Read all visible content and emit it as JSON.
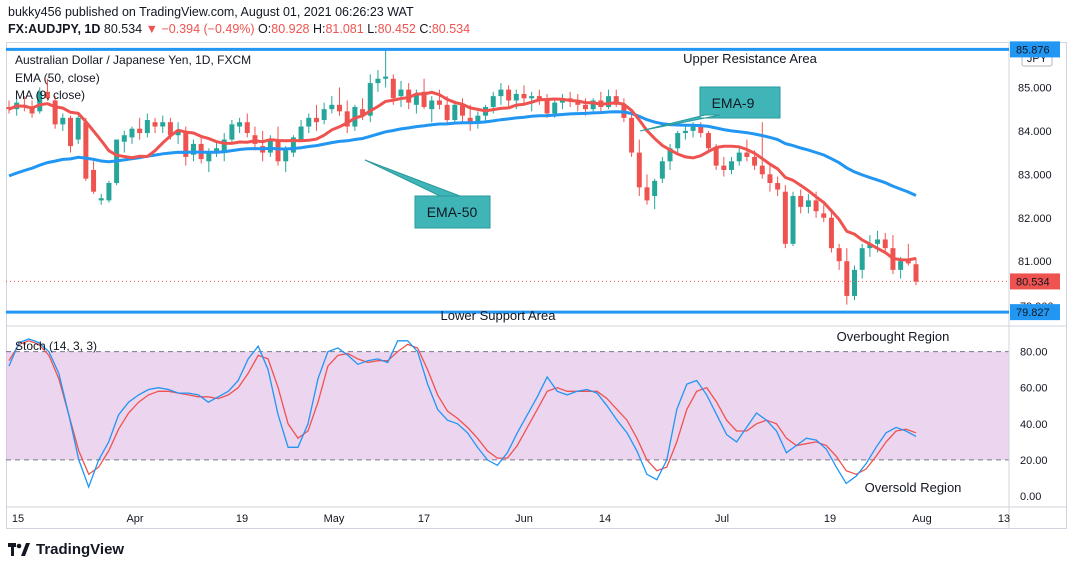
{
  "header": {
    "publisher_line": "bukky456 published on TradingView.com, August 01, 2021 06:26:23 WAT",
    "symbol": "FX:AUDJPY, 1D",
    "last": "80.534",
    "change": "▼ −0.394 (−0.49%)",
    "o_label": "O:",
    "o": "80.928",
    "h_label": "H:",
    "h": "81.081",
    "l_label": "L:",
    "l": "80.452",
    "c_label": "C:",
    "c": "80.534"
  },
  "footer": {
    "brand": "TradingView",
    "logo_icon": "tradingview-logo-icon"
  },
  "colors": {
    "up": "#26a69a",
    "down": "#ef5350",
    "ema50": "#2196f3",
    "ma9": "#ef5350",
    "stoch_k": "#2196f3",
    "stoch_d": "#ef5350",
    "band_fill": "#e1bee7",
    "callout": "#3fb5b8",
    "level": "#2196f3"
  },
  "chart_data": [
    {
      "type": "candlestick",
      "title": "Australian Dollar / Japanese Yen, 1D, FXCM",
      "currency": "JPY",
      "legend": [
        "EMA (50, close)",
        "MA (9, close)"
      ],
      "ylim": [
        79.6,
        86.0
      ],
      "y_ticks": [
        "85.000",
        "84.000",
        "83.000",
        "82.000",
        "81.000"
      ],
      "x_ticks": [
        "15",
        "Apr",
        "19",
        "May",
        "17",
        "Jun",
        "14",
        "Jul",
        "19",
        "Aug",
        "13"
      ],
      "levels": [
        {
          "name": "Upper Resistance Area",
          "value": 85.876,
          "label": "85.876"
        },
        {
          "name": "Lower Support Area",
          "value": 79.827,
          "label": "79.827"
        }
      ],
      "last_price": {
        "value": 80.534,
        "label": "80.534"
      },
      "hidden_label": "79.900",
      "callouts": [
        "EMA-9",
        "EMA-50"
      ],
      "candles": [
        [
          84.55,
          84.7,
          84.4,
          84.5
        ],
        [
          84.5,
          84.75,
          84.35,
          84.65
        ],
        [
          84.6,
          84.8,
          84.45,
          84.55
        ],
        [
          84.55,
          84.7,
          84.3,
          84.4
        ],
        [
          84.45,
          85.0,
          84.4,
          84.9
        ],
        [
          84.9,
          85.2,
          84.7,
          84.75
        ],
        [
          84.7,
          84.8,
          84.05,
          84.15
        ],
        [
          84.15,
          84.4,
          84.0,
          84.3
        ],
        [
          84.3,
          84.35,
          83.5,
          83.65
        ],
        [
          83.8,
          84.35,
          83.7,
          84.3
        ],
        [
          84.2,
          84.3,
          82.85,
          82.9
        ],
        [
          83.1,
          83.3,
          82.55,
          82.6
        ],
        [
          82.4,
          82.55,
          82.3,
          82.45
        ],
        [
          82.4,
          82.85,
          82.35,
          82.8
        ],
        [
          82.8,
          83.8,
          82.75,
          83.8
        ],
        [
          83.75,
          84.0,
          83.5,
          83.9
        ],
        [
          83.85,
          84.1,
          83.7,
          84.05
        ],
        [
          84.05,
          84.3,
          83.8,
          83.95
        ],
        [
          83.95,
          84.4,
          83.85,
          84.25
        ],
        [
          84.2,
          84.3,
          83.95,
          84.1
        ],
        [
          84.1,
          84.35,
          83.95,
          84.2
        ],
        [
          84.2,
          84.3,
          83.8,
          83.9
        ],
        [
          83.9,
          84.2,
          83.7,
          84.0
        ],
        [
          84.0,
          84.1,
          83.2,
          83.4
        ],
        [
          83.45,
          83.8,
          83.3,
          83.7
        ],
        [
          83.7,
          83.85,
          83.25,
          83.35
        ],
        [
          83.3,
          83.6,
          83.05,
          83.5
        ],
        [
          83.5,
          83.75,
          83.4,
          83.6
        ],
        [
          83.5,
          83.95,
          83.3,
          83.8
        ],
        [
          83.8,
          84.25,
          83.7,
          84.15
        ],
        [
          84.1,
          84.3,
          83.95,
          84.2
        ],
        [
          84.2,
          84.4,
          83.85,
          83.95
        ],
        [
          83.9,
          84.1,
          83.55,
          83.7
        ],
        [
          83.65,
          84.0,
          83.3,
          83.5
        ],
        [
          83.5,
          83.9,
          83.4,
          83.8
        ],
        [
          83.8,
          84.1,
          83.2,
          83.3
        ],
        [
          83.3,
          83.65,
          83.05,
          83.55
        ],
        [
          83.5,
          83.9,
          83.4,
          83.85
        ],
        [
          83.8,
          84.25,
          83.75,
          84.1
        ],
        [
          84.1,
          84.4,
          83.95,
          84.3
        ],
        [
          84.3,
          84.6,
          84.0,
          84.2
        ],
        [
          84.25,
          84.65,
          84.15,
          84.5
        ],
        [
          84.5,
          84.8,
          84.4,
          84.6
        ],
        [
          84.6,
          85.0,
          84.35,
          84.45
        ],
        [
          84.45,
          84.7,
          83.95,
          84.1
        ],
        [
          84.1,
          84.6,
          84.0,
          84.55
        ],
        [
          84.5,
          84.75,
          84.25,
          84.35
        ],
        [
          84.35,
          85.3,
          84.2,
          85.1
        ],
        [
          85.1,
          85.4,
          84.9,
          85.2
        ],
        [
          85.2,
          85.85,
          85.0,
          85.25
        ],
        [
          85.2,
          85.3,
          84.6,
          84.75
        ],
        [
          84.8,
          85.15,
          84.55,
          84.95
        ],
        [
          84.95,
          85.1,
          84.5,
          84.65
        ],
        [
          84.6,
          84.95,
          84.4,
          84.85
        ],
        [
          84.9,
          85.2,
          84.5,
          84.55
        ],
        [
          84.5,
          84.8,
          84.2,
          84.7
        ],
        [
          84.7,
          84.95,
          84.5,
          84.6
        ],
        [
          84.6,
          84.8,
          84.15,
          84.25
        ],
        [
          84.25,
          84.7,
          84.2,
          84.6
        ],
        [
          84.6,
          84.75,
          84.2,
          84.35
        ],
        [
          84.3,
          84.6,
          84.0,
          84.2
        ],
        [
          84.2,
          84.45,
          84.05,
          84.35
        ],
        [
          84.35,
          84.6,
          84.2,
          84.55
        ],
        [
          84.55,
          84.9,
          84.4,
          84.8
        ],
        [
          84.8,
          85.1,
          84.6,
          84.95
        ],
        [
          84.95,
          85.05,
          84.55,
          84.7
        ],
        [
          84.7,
          84.95,
          84.5,
          84.85
        ],
        [
          84.85,
          85.05,
          84.6,
          84.75
        ],
        [
          84.75,
          84.9,
          84.45,
          84.8
        ],
        [
          84.8,
          84.95,
          84.6,
          84.7
        ],
        [
          84.7,
          84.85,
          84.3,
          84.4
        ],
        [
          84.4,
          84.7,
          84.3,
          84.65
        ],
        [
          84.65,
          84.85,
          84.5,
          84.75
        ],
        [
          84.75,
          84.9,
          84.55,
          84.7
        ],
        [
          84.7,
          84.85,
          84.45,
          84.6
        ],
        [
          84.6,
          84.75,
          84.35,
          84.5
        ],
        [
          84.5,
          84.75,
          84.45,
          84.7
        ],
        [
          84.7,
          84.9,
          84.4,
          84.55
        ],
        [
          84.55,
          84.95,
          84.5,
          84.8
        ],
        [
          84.8,
          84.95,
          84.55,
          84.6
        ],
        [
          84.6,
          84.75,
          84.2,
          84.3
        ],
        [
          84.3,
          84.4,
          83.4,
          83.5
        ],
        [
          83.5,
          83.8,
          82.5,
          82.7
        ],
        [
          82.7,
          83.0,
          82.3,
          82.4
        ],
        [
          82.5,
          82.9,
          82.2,
          82.85
        ],
        [
          82.9,
          83.4,
          82.8,
          83.3
        ],
        [
          83.3,
          83.7,
          83.1,
          83.6
        ],
        [
          83.6,
          84.0,
          83.5,
          83.95
        ],
        [
          83.95,
          84.1,
          83.8,
          84.0
        ],
        [
          84.0,
          84.2,
          83.85,
          84.1
        ],
        [
          84.1,
          84.2,
          83.85,
          83.95
        ],
        [
          83.95,
          84.0,
          83.55,
          83.6
        ],
        [
          83.6,
          83.7,
          83.1,
          83.2
        ],
        [
          83.2,
          83.4,
          82.95,
          83.1
        ],
        [
          83.1,
          83.4,
          83.0,
          83.3
        ],
        [
          83.3,
          83.6,
          83.2,
          83.5
        ],
        [
          83.5,
          83.8,
          83.3,
          83.4
        ],
        [
          83.4,
          83.55,
          83.1,
          83.2
        ],
        [
          83.2,
          84.2,
          82.9,
          83.0
        ],
        [
          83.0,
          83.2,
          82.6,
          82.8
        ],
        [
          82.8,
          82.95,
          82.5,
          82.65
        ],
        [
          82.6,
          82.75,
          81.3,
          81.4
        ],
        [
          81.4,
          82.6,
          81.35,
          82.5
        ],
        [
          82.5,
          82.65,
          82.1,
          82.25
        ],
        [
          82.25,
          82.55,
          82.1,
          82.4
        ],
        [
          82.4,
          82.6,
          82.0,
          82.15
        ],
        [
          82.1,
          82.3,
          81.9,
          82.0
        ],
        [
          82.0,
          82.2,
          81.2,
          81.3
        ],
        [
          81.3,
          81.4,
          80.8,
          81.0
        ],
        [
          81.0,
          81.3,
          80.0,
          80.2
        ],
        [
          80.2,
          80.9,
          80.1,
          80.8
        ],
        [
          80.8,
          81.4,
          80.6,
          81.3
        ],
        [
          81.3,
          81.6,
          81.1,
          81.4
        ],
        [
          81.4,
          81.7,
          81.2,
          81.5
        ],
        [
          81.5,
          81.65,
          81.2,
          81.3
        ],
        [
          81.3,
          81.6,
          80.7,
          80.8
        ],
        [
          80.8,
          81.1,
          80.6,
          81.0
        ],
        [
          81.0,
          81.4,
          80.9,
          80.95
        ],
        [
          80.93,
          81.08,
          80.45,
          80.53
        ]
      ]
    },
    {
      "type": "line",
      "title": "Stoch (14, 3, 3)",
      "ylim": [
        -5,
        92
      ],
      "y_ticks": [
        "80.00",
        "60.00",
        "40.00",
        "20.00",
        "0.00"
      ],
      "bands": [
        20,
        80
      ],
      "annotations": [
        "Overbought Region",
        "Oversold Region"
      ],
      "series": [
        {
          "name": "%K",
          "values": [
            72,
            85,
            87,
            85,
            80,
            68,
            45,
            20,
            5,
            20,
            30,
            45,
            52,
            56,
            59,
            60,
            59,
            57,
            57,
            56,
            52,
            55,
            58,
            64,
            76,
            83,
            70,
            45,
            27,
            27,
            40,
            65,
            80,
            82,
            78,
            73,
            75,
            76,
            74,
            86,
            86,
            80,
            62,
            48,
            42,
            40,
            35,
            27,
            20,
            17,
            24,
            35,
            45,
            55,
            66,
            58,
            56,
            58,
            59,
            57,
            50,
            42,
            35,
            25,
            12,
            9,
            20,
            48,
            62,
            64,
            56,
            45,
            34,
            30,
            38,
            46,
            42,
            36,
            24,
            28,
            32,
            31,
            26,
            16,
            7,
            11,
            18,
            27,
            35,
            38,
            36,
            33
          ]
        },
        {
          "name": "%D",
          "values": [
            75,
            84,
            86,
            84,
            78,
            65,
            45,
            25,
            12,
            16,
            25,
            37,
            46,
            52,
            56,
            58,
            58,
            57,
            56,
            55,
            55,
            54,
            56,
            60,
            68,
            78,
            76,
            60,
            40,
            32,
            36,
            52,
            72,
            78,
            79,
            76,
            74,
            75,
            75,
            80,
            84,
            82,
            70,
            56,
            47,
            43,
            38,
            32,
            25,
            21,
            21,
            28,
            38,
            48,
            58,
            60,
            58,
            58,
            58,
            58,
            54,
            48,
            42,
            32,
            20,
            14,
            16,
            30,
            48,
            58,
            60,
            52,
            42,
            36,
            36,
            40,
            42,
            40,
            32,
            28,
            29,
            30,
            28,
            22,
            14,
            12,
            15,
            22,
            30,
            36,
            37,
            35
          ]
        }
      ]
    }
  ]
}
